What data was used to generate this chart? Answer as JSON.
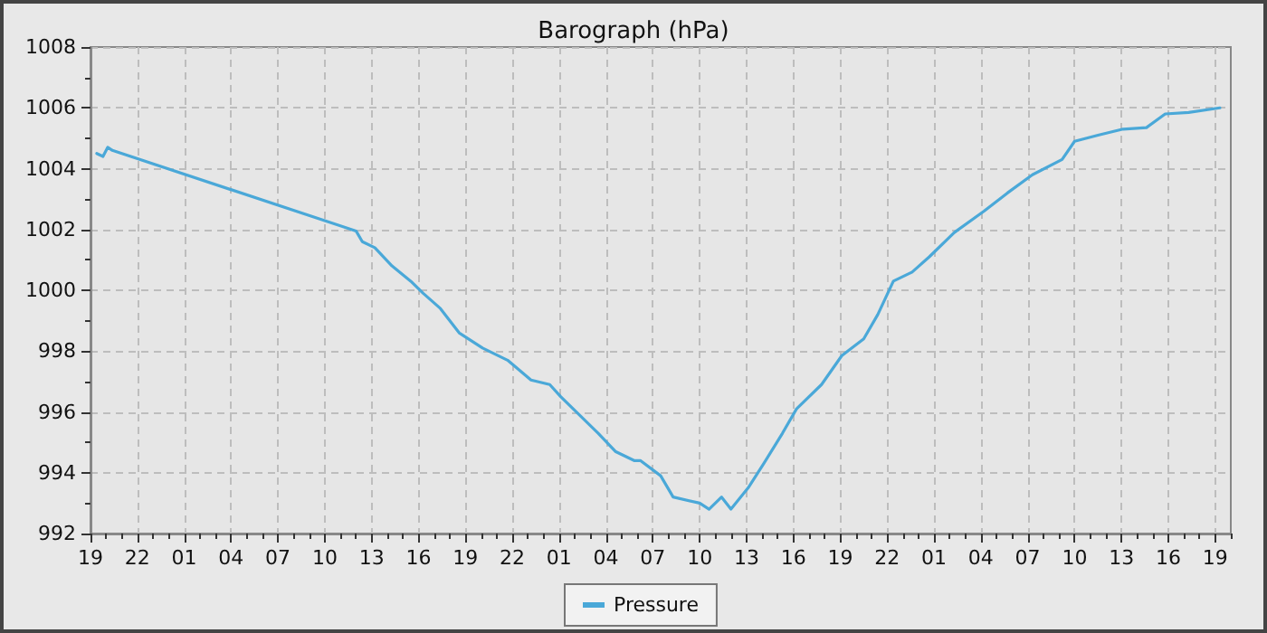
{
  "chart_data": {
    "type": "line",
    "title": "Barograph (hPa)",
    "legend": "bottom",
    "grid": true,
    "marker": "none",
    "line_style": "solid",
    "xlim": [
      "--01-01T19:00",
      "--01-04T20:00"
    ],
    "ylim": [
      992,
      1008
    ],
    "xticks": [
      {
        "value": "--01-01T19:00",
        "label": "19"
      },
      {
        "value": "--01-01T20:00",
        "label": null
      },
      {
        "value": "--01-01T21:00",
        "label": null
      },
      {
        "value": "--01-01T22:00",
        "label": "22"
      },
      {
        "value": "--01-01T23:00",
        "label": null
      },
      {
        "value": "--01-02T00:00",
        "label": null
      },
      {
        "value": "--01-02T01:00",
        "label": "01"
      },
      {
        "value": "--01-02T02:00",
        "label": null
      },
      {
        "value": "--01-02T03:00",
        "label": null
      },
      {
        "value": "--01-02T04:00",
        "label": "04"
      },
      {
        "value": "--01-02T05:00",
        "label": null
      },
      {
        "value": "--01-02T06:00",
        "label": null
      },
      {
        "value": "--01-02T07:00",
        "label": "07"
      },
      {
        "value": "--01-02T08:00",
        "label": null
      },
      {
        "value": "--01-02T09:00",
        "label": null
      },
      {
        "value": "--01-02T10:00",
        "label": "10"
      },
      {
        "value": "--01-02T11:00",
        "label": null
      },
      {
        "value": "--01-02T12:00",
        "label": null
      },
      {
        "value": "--01-02T13:00",
        "label": "13"
      },
      {
        "value": "--01-02T14:00",
        "label": null
      },
      {
        "value": "--01-02T15:00",
        "label": null
      },
      {
        "value": "--01-02T16:00",
        "label": "16"
      },
      {
        "value": "--01-02T17:00",
        "label": null
      },
      {
        "value": "--01-02T18:00",
        "label": null
      },
      {
        "value": "--01-02T19:00",
        "label": "19"
      },
      {
        "value": "--01-02T20:00",
        "label": null
      },
      {
        "value": "--01-02T21:00",
        "label": null
      },
      {
        "value": "--01-02T22:00",
        "label": "22"
      },
      {
        "value": "--01-02T23:00",
        "label": null
      },
      {
        "value": "--01-03T00:00",
        "label": null
      },
      {
        "value": "--01-03T01:00",
        "label": "01"
      },
      {
        "value": "--01-03T02:00",
        "label": null
      },
      {
        "value": "--01-03T03:00",
        "label": null
      },
      {
        "value": "--01-03T04:00",
        "label": "04"
      },
      {
        "value": "--01-03T05:00",
        "label": null
      },
      {
        "value": "--01-03T06:00",
        "label": null
      },
      {
        "value": "--01-03T07:00",
        "label": "07"
      },
      {
        "value": "--01-03T08:00",
        "label": null
      },
      {
        "value": "--01-03T09:00",
        "label": null
      },
      {
        "value": "--01-03T10:00",
        "label": "10"
      },
      {
        "value": "--01-03T11:00",
        "label": null
      },
      {
        "value": "--01-03T12:00",
        "label": null
      },
      {
        "value": "--01-03T13:00",
        "label": "13"
      },
      {
        "value": "--01-03T14:00",
        "label": null
      },
      {
        "value": "--01-03T15:00",
        "label": null
      },
      {
        "value": "--01-03T16:00",
        "label": "16"
      },
      {
        "value": "--01-03T17:00",
        "label": null
      },
      {
        "value": "--01-03T18:00",
        "label": null
      },
      {
        "value": "--01-03T19:00",
        "label": "19"
      },
      {
        "value": "--01-03T20:00",
        "label": null
      },
      {
        "value": "--01-03T21:00",
        "label": null
      },
      {
        "value": "--01-03T22:00",
        "label": "22"
      },
      {
        "value": "--01-03T23:00",
        "label": null
      },
      {
        "value": "--01-04T00:00",
        "label": null
      },
      {
        "value": "--01-04T01:00",
        "label": "01"
      },
      {
        "value": "--01-04T02:00",
        "label": null
      },
      {
        "value": "--01-04T03:00",
        "label": null
      },
      {
        "value": "--01-04T04:00",
        "label": "04"
      },
      {
        "value": "--01-04T05:00",
        "label": null
      },
      {
        "value": "--01-04T06:00",
        "label": null
      },
      {
        "value": "--01-04T07:00",
        "label": "07"
      },
      {
        "value": "--01-04T08:00",
        "label": null
      },
      {
        "value": "--01-04T09:00",
        "label": null
      },
      {
        "value": "--01-04T10:00",
        "label": "10"
      },
      {
        "value": "--01-04T11:00",
        "label": null
      },
      {
        "value": "--01-04T12:00",
        "label": null
      },
      {
        "value": "--01-04T13:00",
        "label": "13"
      },
      {
        "value": "--01-04T14:00",
        "label": null
      },
      {
        "value": "--01-04T15:00",
        "label": null
      },
      {
        "value": "--01-04T16:00",
        "label": "16"
      },
      {
        "value": "--01-04T17:00",
        "label": null
      },
      {
        "value": "--01-04T18:00",
        "label": null
      },
      {
        "value": "--01-04T19:00",
        "label": "19"
      },
      {
        "value": "--01-04T20:00",
        "label": null
      }
    ],
    "yticks": [
      992,
      {
        "value": 993,
        "label": null
      },
      994,
      {
        "value": 995,
        "label": null
      },
      996,
      {
        "value": 997,
        "label": null
      },
      998,
      {
        "value": 999,
        "label": null
      },
      1000,
      {
        "value": 1001,
        "label": null
      },
      1002,
      {
        "value": 1003,
        "label": null
      },
      1004,
      {
        "value": 1005,
        "label": null
      },
      1006,
      {
        "value": 1007,
        "label": null
      },
      1008
    ],
    "series": [
      {
        "name": "Pressure",
        "color": "#4aa8d8",
        "x": [
          "--01-01T19:24",
          "--01-01T19:48",
          "--01-01T20:06",
          "--01-01T20:24",
          "--01-02T12:00",
          "--01-02T12:24",
          "--01-02T13:12",
          "--01-02T14:18",
          "--01-02T15:30",
          "--01-02T16:18",
          "--01-02T17:24",
          "--01-02T18:36",
          "--01-02T20:06",
          "--01-02T21:42",
          "--01-02T23:12",
          "--01-03T00:24",
          "--01-03T01:06",
          "--01-03T02:18",
          "--01-03T03:30",
          "--01-03T04:36",
          "--01-03T05:48",
          "--01-03T06:12",
          "--01-03T07:30",
          "--01-03T08:18",
          "--01-03T10:00",
          "--01-03T10:36",
          "--01-03T11:24",
          "--01-03T12:00",
          "--01-03T13:06",
          "--01-03T14:06",
          "--01-03T15:18",
          "--01-03T16:12",
          "--01-03T17:48",
          "--01-03T19:06",
          "--01-03T20:30",
          "--01-03T21:24",
          "--01-03T22:24",
          "--01-03T23:36",
          "--01-04T00:42",
          "--01-04T02:18",
          "--01-04T04:12",
          "--01-04T05:42",
          "--01-04T07:18",
          "--01-04T09:12",
          "--01-04T10:00",
          "--01-04T11:30",
          "--01-04T13:06",
          "--01-04T14:36",
          "--01-04T15:48",
          "--01-04T17:18",
          "--01-04T19:18"
        ],
        "values": [
          1004.5,
          1004.4,
          1004.7,
          1004.6,
          1001.95,
          1001.6,
          1001.4,
          1000.8,
          1000.3,
          999.9,
          999.4,
          998.6,
          998.1,
          997.7,
          997.05,
          996.9,
          996.5,
          995.9,
          995.3,
          994.7,
          994.4,
          994.4,
          993.9,
          993.2,
          993.0,
          992.8,
          993.2,
          992.8,
          993.5,
          994.3,
          995.3,
          996.1,
          996.9,
          997.85,
          998.4,
          999.2,
          1000.3,
          1000.6,
          1001.1,
          1001.9,
          1002.6,
          1003.2,
          1003.8,
          1004.3,
          1004.9,
          1005.1,
          1005.3,
          1005.35,
          1005.8,
          1005.85,
          1006.0
        ]
      }
    ]
  }
}
